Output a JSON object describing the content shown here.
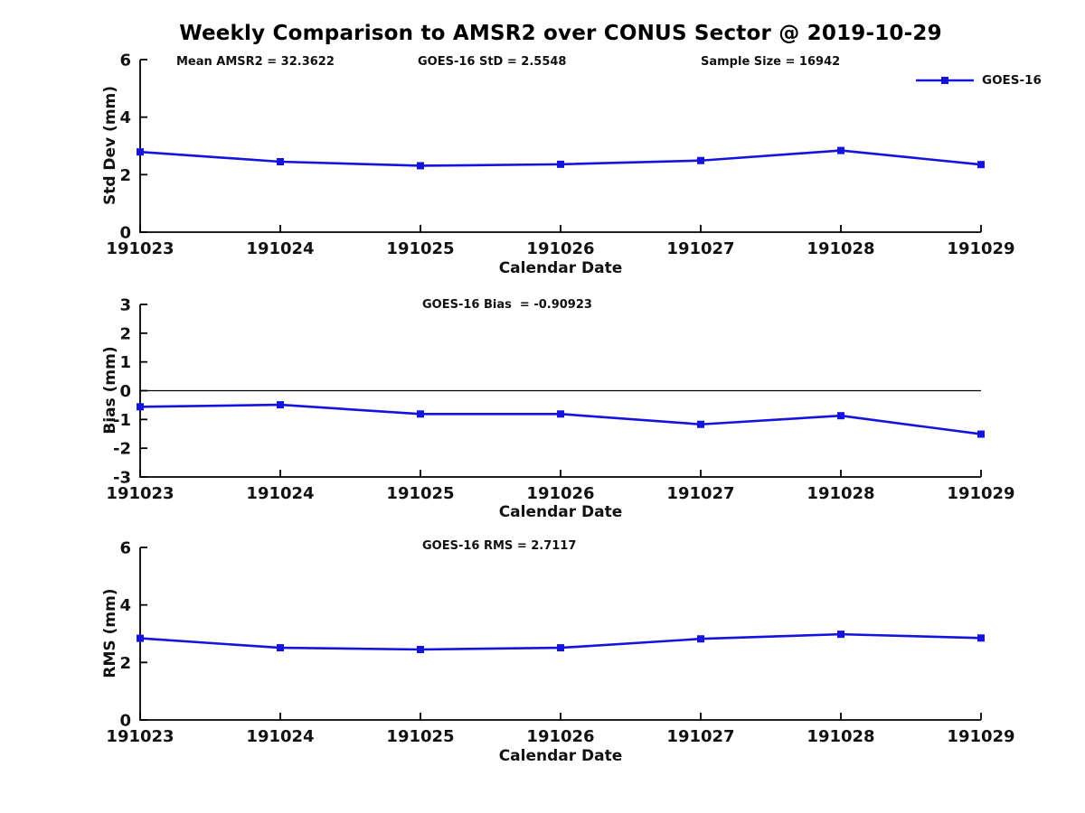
{
  "title": "Weekly Comparison to AMSR2 over CONUS Sector @ 2019-10-29",
  "legend": {
    "label": "GOES-16"
  },
  "colors": {
    "line": "#1414dc",
    "axis": "#000000",
    "text": "#111111"
  },
  "chart_data": [
    {
      "type": "line",
      "name": "std-dev-panel",
      "annotations": [
        "Mean AMSR2 = 32.3622",
        "GOES-16 StD = 2.5548",
        "Sample Size = 16942"
      ],
      "categories": [
        "191023",
        "191024",
        "191025",
        "191026",
        "191027",
        "191028",
        "191029"
      ],
      "series": [
        {
          "name": "GOES-16",
          "values": [
            2.79,
            2.45,
            2.31,
            2.36,
            2.49,
            2.84,
            2.35
          ]
        }
      ],
      "xlabel": "Calendar Date",
      "ylabel": "Std Dev (mm)",
      "ylim": [
        0,
        6
      ],
      "yticks": [
        0,
        2,
        4,
        6
      ],
      "zero_line": false,
      "grid": false,
      "legend_position": "top-right-outside"
    },
    {
      "type": "line",
      "name": "bias-panel",
      "annotations": [
        "GOES-16 Bias  = -0.90923"
      ],
      "categories": [
        "191023",
        "191024",
        "191025",
        "191026",
        "191027",
        "191028",
        "191029"
      ],
      "series": [
        {
          "name": "GOES-16",
          "values": [
            -0.56,
            -0.49,
            -0.81,
            -0.81,
            -1.17,
            -0.87,
            -1.51
          ]
        }
      ],
      "xlabel": "Calendar Date",
      "ylabel": "Bias (mm)",
      "ylim": [
        -3,
        3
      ],
      "yticks": [
        -3,
        -2,
        -1,
        0,
        1,
        2,
        3
      ],
      "zero_line": true,
      "grid": false
    },
    {
      "type": "line",
      "name": "rms-panel",
      "annotations": [
        "GOES-16 RMS = 2.7117"
      ],
      "categories": [
        "191023",
        "191024",
        "191025",
        "191026",
        "191027",
        "191028",
        "191029"
      ],
      "series": [
        {
          "name": "GOES-16",
          "values": [
            2.84,
            2.51,
            2.45,
            2.51,
            2.82,
            2.98,
            2.85
          ]
        }
      ],
      "xlabel": "Calendar Date",
      "ylabel": "RMS (mm)",
      "ylim": [
        0,
        6
      ],
      "yticks": [
        0,
        2,
        4,
        6
      ],
      "zero_line": false,
      "grid": false
    }
  ]
}
